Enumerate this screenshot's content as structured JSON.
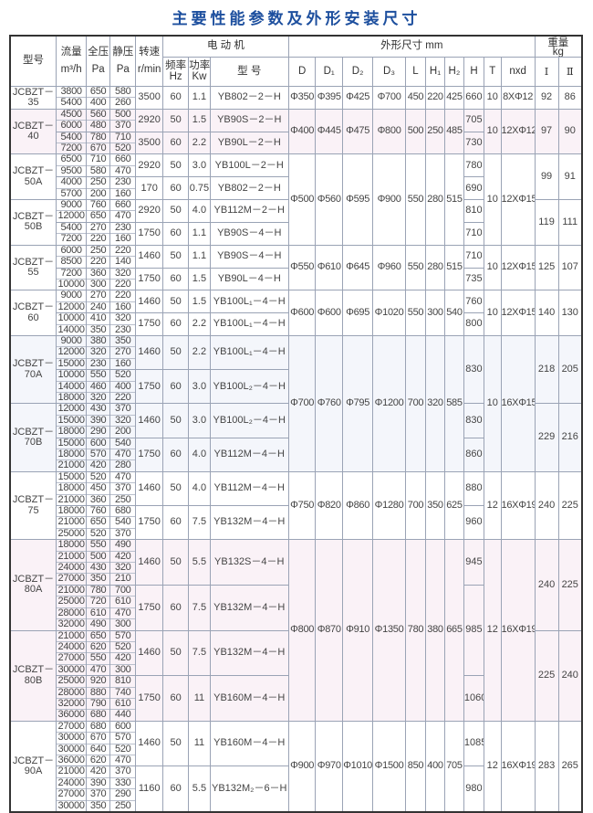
{
  "title": "主要性能参数及外形安装尺寸",
  "header": {
    "model": "型号",
    "flow": "流量",
    "flow_unit": "m³/h",
    "total_pressure": "全压",
    "total_unit": "Pa",
    "static_pressure": "静压",
    "static_unit": "Pa",
    "speed": "转速",
    "speed_unit": "r/min",
    "motor": "电 动 机",
    "freq": "频率",
    "freq_unit": "Hz",
    "power": "功率",
    "power_unit": "Kw",
    "motor_model": "型 号",
    "dims": "外形尺寸 mm",
    "dim_cols": [
      "D",
      "D₁",
      "D₂",
      "D₃",
      "L",
      "H₁",
      "H₂",
      "H",
      "T",
      "nxd"
    ],
    "weight": "重量",
    "weight_unit": "kg",
    "weight_i": "Ⅰ",
    "weight_ii": "Ⅱ"
  },
  "blocks": [
    {
      "bg": "wh",
      "dims": [
        "Φ350",
        "Φ395",
        "Φ425",
        "Φ700",
        "450",
        "220",
        "425"
      ],
      "T": "10",
      "nxd": "8XΦ12",
      "rows": [
        {
          "model": [
            "JCBZT－",
            "35"
          ],
          "model_span": 1,
          "flow": [
            "3800",
            "5400"
          ],
          "total": [
            "650",
            "400"
          ],
          "static": [
            "580",
            "260"
          ],
          "rpm": "3500",
          "hz": "60",
          "kw": "1.1",
          "motor": "YB802－2－H"
        }
      ],
      "H": [
        {
          "v": "660",
          "span": 1
        }
      ],
      "weight": [
        {
          "i": "92",
          "ii": "86",
          "span": 1
        }
      ]
    },
    {
      "bg": "pk",
      "dims": [
        "Φ400",
        "Φ445",
        "Φ475",
        "Φ800",
        "500",
        "250",
        "485"
      ],
      "T": "10",
      "nxd": "12XΦ12",
      "rows": [
        {
          "model": [
            "JCBZT－",
            "40"
          ],
          "model_span": 2,
          "flow": [
            "4500",
            "6000"
          ],
          "total": [
            "560",
            "480"
          ],
          "static": [
            "500",
            "370"
          ],
          "rpm": "2920",
          "hz": "50",
          "kw": "1.5",
          "motor": "YB90S－2－H"
        },
        {
          "flow": [
            "5400",
            "7200"
          ],
          "total": [
            "780",
            "670"
          ],
          "static": [
            "710",
            "520"
          ],
          "rpm": "3500",
          "hz": "60",
          "kw": "2.2",
          "motor": "YB90L－2－H"
        }
      ],
      "H": [
        {
          "v": "705",
          "span": 1
        },
        {
          "v": "730",
          "span": 1
        }
      ],
      "weight": [
        {
          "i": "97",
          "ii": "90",
          "span": 2
        }
      ]
    },
    {
      "bg": "wh",
      "dims": [
        "Φ500",
        "Φ560",
        "Φ595",
        "Φ900",
        "550",
        "280",
        "515"
      ],
      "T": "10",
      "nxd": "12XΦ15",
      "rows": [
        {
          "model": [
            "JCBZT－",
            "50A"
          ],
          "model_span": 2,
          "flow": [
            "6500",
            "9500"
          ],
          "total": [
            "710",
            "580"
          ],
          "static": [
            "660",
            "470"
          ],
          "rpm": "2920",
          "hz": "50",
          "kw": "3.0",
          "motor": "YB100L－2－H"
        },
        {
          "flow": [
            "4000",
            "5700"
          ],
          "total": [
            "250",
            "200"
          ],
          "static": [
            "230",
            "160"
          ],
          "rpm": "170",
          "hz": "60",
          "kw": "0.75",
          "motor": "YB802－2－H"
        },
        {
          "model": [
            "JCBZT－",
            "50B"
          ],
          "model_span": 2,
          "flow": [
            "9000",
            "12000"
          ],
          "total": [
            "760",
            "650"
          ],
          "static": [
            "660",
            "470"
          ],
          "rpm": "2920",
          "hz": "50",
          "kw": "4.0",
          "motor": "YB112M－2－H"
        },
        {
          "flow": [
            "5400",
            "7200"
          ],
          "total": [
            "270",
            "220"
          ],
          "static": [
            "230",
            "160"
          ],
          "rpm": "1750",
          "hz": "60",
          "kw": "1.1",
          "motor": "YB90S－4－H"
        }
      ],
      "H": [
        {
          "v": "780",
          "span": 1
        },
        {
          "v": "690",
          "span": 1
        },
        {
          "v": "810",
          "span": 1
        },
        {
          "v": "710",
          "span": 1
        }
      ],
      "weight": [
        {
          "i": "99",
          "ii": "91",
          "span": 2
        },
        {
          "i": "119",
          "ii": "111",
          "span": 2
        }
      ]
    },
    {
      "bg": "wh",
      "dims": [
        "Φ550",
        "Φ610",
        "Φ645",
        "Φ960",
        "550",
        "280",
        "515"
      ],
      "T": "10",
      "nxd": "12XΦ15",
      "rows": [
        {
          "model": [
            "JCBZT－",
            "55"
          ],
          "model_span": 2,
          "flow": [
            "6000",
            "8500"
          ],
          "total": [
            "250",
            "220"
          ],
          "static": [
            "220",
            "140"
          ],
          "rpm": "1460",
          "hz": "50",
          "kw": "1.1",
          "motor": "YB90S－4－H"
        },
        {
          "flow": [
            "7200",
            "10000"
          ],
          "total": [
            "360",
            "300"
          ],
          "static": [
            "320",
            "220"
          ],
          "rpm": "1750",
          "hz": "60",
          "kw": "1.5",
          "motor": "YB90L－4－H"
        }
      ],
      "H": [
        {
          "v": "710",
          "span": 1
        },
        {
          "v": "735",
          "span": 1
        }
      ],
      "weight": [
        {
          "i": "125",
          "ii": "107",
          "span": 2
        }
      ]
    },
    {
      "bg": "wh",
      "dims": [
        "Φ600",
        "Φ600",
        "Φ695",
        "Φ1020",
        "550",
        "300",
        "540"
      ],
      "T": "10",
      "nxd": "12XΦ15",
      "rows": [
        {
          "model": [
            "JCBZT－",
            "60"
          ],
          "model_span": 2,
          "flow": [
            "9000",
            "12000"
          ],
          "total": [
            "270",
            "240"
          ],
          "static": [
            "220",
            "160"
          ],
          "rpm": "1460",
          "hz": "50",
          "kw": "1.5",
          "motor": "YB100L₁－4－H"
        },
        {
          "flow": [
            "10000",
            "14000"
          ],
          "total": [
            "410",
            "350"
          ],
          "static": [
            "320",
            "230"
          ],
          "rpm": "1750",
          "hz": "60",
          "kw": "2.2",
          "motor": "YB100L₁－4－H"
        }
      ],
      "H": [
        {
          "v": "760",
          "span": 1
        },
        {
          "v": "800",
          "span": 1
        }
      ],
      "weight": [
        {
          "i": "140",
          "ii": "130",
          "span": 2
        }
      ]
    },
    {
      "bg": "bl",
      "dims": [
        "Φ700",
        "Φ760",
        "Φ795",
        "Φ1200",
        "700",
        "320",
        "585"
      ],
      "T": "10",
      "nxd": "16XΦ15",
      "rows": [
        {
          "model": [
            "JCBZT－",
            "70A"
          ],
          "model_span": 2,
          "flow": [
            "9000",
            "12000",
            "15000"
          ],
          "total": [
            "380",
            "320",
            "230"
          ],
          "static": [
            "350",
            "270",
            "160"
          ],
          "rpm": "1460",
          "hz": "50",
          "kw": "2.2",
          "motor": "YB100L₁－4－H"
        },
        {
          "flow": [
            "10000",
            "14000",
            "18000"
          ],
          "total": [
            "550",
            "460",
            "320"
          ],
          "static": [
            "520",
            "400",
            "220"
          ],
          "rpm": "1750",
          "hz": "60",
          "kw": "3.0",
          "motor": "YB100L₂－4－H"
        },
        {
          "model": [
            "JCBZT－",
            "70B"
          ],
          "model_span": 2,
          "flow": [
            "12000",
            "15000",
            "18000"
          ],
          "total": [
            "430",
            "390",
            "290"
          ],
          "static": [
            "370",
            "320",
            "200"
          ],
          "rpm": "1460",
          "hz": "50",
          "kw": "3.0",
          "motor": "YB100L₂－4－H"
        },
        {
          "flow": [
            "15000",
            "18000",
            "21000"
          ],
          "total": [
            "600",
            "570",
            "420"
          ],
          "static": [
            "540",
            "470",
            "280"
          ],
          "rpm": "1750",
          "hz": "60",
          "kw": "4.0",
          "motor": "YB112M－4－H"
        }
      ],
      "H": [
        {
          "v": "830",
          "span": 2
        },
        {
          "v": "830",
          "span": 1
        },
        {
          "v": "860",
          "span": 1
        }
      ],
      "weight": [
        {
          "i": "218",
          "ii": "205",
          "span": 2
        },
        {
          "i": "229",
          "ii": "216",
          "span": 2
        }
      ]
    },
    {
      "bg": "wh",
      "dims": [
        "Φ750",
        "Φ820",
        "Φ860",
        "Φ1280",
        "700",
        "350",
        "625"
      ],
      "T": "12",
      "nxd": "16XΦ19",
      "rows": [
        {
          "model": [
            "JCBZT－",
            "75"
          ],
          "model_span": 2,
          "flow": [
            "15000",
            "18000",
            "21000"
          ],
          "total": [
            "520",
            "450",
            "360"
          ],
          "static": [
            "470",
            "370",
            "250"
          ],
          "rpm": "1460",
          "hz": "50",
          "kw": "4.0",
          "motor": "YB112M－4－H"
        },
        {
          "flow": [
            "18000",
            "21000",
            "25000"
          ],
          "total": [
            "760",
            "650",
            "520"
          ],
          "static": [
            "680",
            "540",
            "370"
          ],
          "rpm": "1750",
          "hz": "60",
          "kw": "7.5",
          "motor": "YB132M－4－H"
        }
      ],
      "H": [
        {
          "v": "880",
          "span": 1
        },
        {
          "v": "960",
          "span": 1
        }
      ],
      "weight": [
        {
          "i": "240",
          "ii": "225",
          "span": 2
        }
      ]
    },
    {
      "bg": "pk",
      "dims": [
        "Φ800",
        "Φ870",
        "Φ910",
        "Φ1350",
        "780",
        "380",
        "665"
      ],
      "T": "12",
      "nxd": "16XΦ19",
      "rows": [
        {
          "model": [
            "JCBZT－",
            "80A"
          ],
          "model_span": 2,
          "flow": [
            "18000",
            "21000",
            "24000",
            "27000"
          ],
          "total": [
            "550",
            "500",
            "430",
            "350"
          ],
          "static": [
            "490",
            "420",
            "320",
            "210"
          ],
          "rpm": "1460",
          "hz": "50",
          "kw": "5.5",
          "motor": "YB132S－4－H"
        },
        {
          "flow": [
            "21000",
            "25000",
            "28000",
            "32000"
          ],
          "total": [
            "780",
            "720",
            "610",
            "490"
          ],
          "static": [
            "700",
            "610",
            "470",
            "300"
          ],
          "rpm": "1750",
          "hz": "60",
          "kw": "7.5",
          "motor": "YB132M－4－H"
        },
        {
          "model": [
            "JCBZT－",
            "80B"
          ],
          "model_span": 2,
          "flow": [
            "21000",
            "24000",
            "27000",
            "30000"
          ],
          "total": [
            "650",
            "620",
            "550",
            "470"
          ],
          "static": [
            "570",
            "520",
            "420",
            "300"
          ],
          "rpm": "1460",
          "hz": "50",
          "kw": "7.5",
          "motor": "YB132M－4－H"
        },
        {
          "flow": [
            "25000",
            "28000",
            "32000",
            "36000"
          ],
          "total": [
            "920",
            "880",
            "790",
            "680"
          ],
          "static": [
            "810",
            "740",
            "610",
            "440"
          ],
          "rpm": "1750",
          "hz": "60",
          "kw": "11",
          "motor": "YB160M－4－H"
        }
      ],
      "H": [
        {
          "v": "945",
          "span": 1
        },
        {
          "v": "985",
          "span": 2
        },
        {
          "v": "1060",
          "span": 1
        }
      ],
      "weight": [
        {
          "i": "240",
          "ii": "225",
          "span": 2
        },
        {
          "i": "225",
          "ii": "240",
          "span": 2
        }
      ]
    },
    {
      "bg": "wh",
      "dims": [
        "Φ900",
        "Φ970",
        "Φ1010",
        "Φ1500",
        "850",
        "400",
        "705"
      ],
      "T": "12",
      "nxd": "16XΦ19",
      "rows": [
        {
          "model": [
            "JCBZT－",
            "90A"
          ],
          "model_span": 2,
          "flow": [
            "27000",
            "30000",
            "30000",
            "36000"
          ],
          "total": [
            "680",
            "670",
            "640",
            "620"
          ],
          "static": [
            "600",
            "570",
            "520",
            "470"
          ],
          "rpm": "1460",
          "hz": "50",
          "kw": "11",
          "motor": "YB160M－4－H"
        },
        {
          "flow": [
            "21000",
            "24000",
            "27000",
            "30000"
          ],
          "total": [
            "420",
            "390",
            "370",
            "350"
          ],
          "static": [
            "370",
            "330",
            "290",
            "250"
          ],
          "rpm": "1160",
          "hz": "60",
          "kw": "5.5",
          "motor": "YB132M₂－6－H"
        }
      ],
      "H": [
        {
          "v": "1085",
          "span": 1
        },
        {
          "v": "980",
          "span": 1
        }
      ],
      "weight": [
        {
          "i": "283",
          "ii": "265",
          "span": 2
        }
      ]
    }
  ]
}
